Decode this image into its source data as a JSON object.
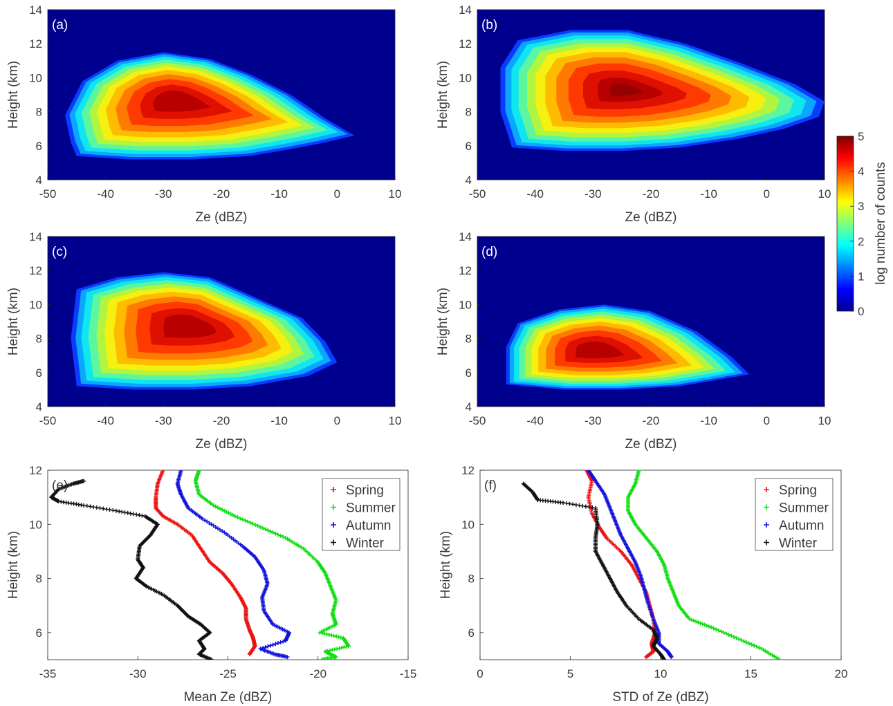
{
  "colorbar": {
    "label": "log number of counts",
    "ticks": [
      0,
      1,
      2,
      3,
      4,
      5
    ],
    "range": [
      0,
      5
    ]
  },
  "colormap": [
    "#00008f",
    "#0000ff",
    "#00ffff",
    "#ffff00",
    "#ff0000",
    "#800000"
  ],
  "chart_data": [
    {
      "type": "heatmap",
      "panel_label": "(a)",
      "xlabel": "Ze  (dBZ)",
      "ylabel": "Height (km)",
      "xlim": [
        -50,
        10
      ],
      "ylim": [
        4,
        14
      ],
      "xticks": [
        -50,
        -40,
        -30,
        -20,
        -10,
        0,
        10
      ],
      "yticks": [
        4,
        6,
        8,
        10,
        12,
        14
      ],
      "outline": [
        [
          -45,
          5.4
        ],
        [
          -36,
          5.2
        ],
        [
          -25,
          5.2
        ],
        [
          -15,
          5.4
        ],
        [
          -8,
          5.8
        ],
        [
          -2,
          6.2
        ],
        [
          3,
          6.6
        ],
        [
          -2,
          7.6
        ],
        [
          -8,
          9.0
        ],
        [
          -15,
          10.2
        ],
        [
          -22,
          11.1
        ],
        [
          -30,
          11.5
        ],
        [
          -38,
          11.0
        ],
        [
          -44,
          9.8
        ],
        [
          -47,
          7.8
        ],
        [
          -46,
          6.2
        ]
      ],
      "peak": {
        "x": -28,
        "y": 8.7,
        "value": 4.6
      }
    },
    {
      "type": "heatmap",
      "panel_label": "(b)",
      "xlabel": "Ze  (dBZ)",
      "ylabel": "Height (km)",
      "xlim": [
        -50,
        10
      ],
      "ylim": [
        4,
        14
      ],
      "xticks": [
        -50,
        -40,
        -30,
        -20,
        -10,
        0,
        10
      ],
      "yticks": [
        4,
        6,
        8,
        10,
        12,
        14
      ],
      "outline": [
        [
          -44,
          5.9
        ],
        [
          -35,
          5.7
        ],
        [
          -25,
          5.7
        ],
        [
          -15,
          5.9
        ],
        [
          -5,
          6.4
        ],
        [
          3,
          7.0
        ],
        [
          9,
          7.7
        ],
        [
          10,
          8.6
        ],
        [
          5,
          9.6
        ],
        [
          -4,
          10.8
        ],
        [
          -14,
          12.0
        ],
        [
          -24,
          12.8
        ],
        [
          -34,
          12.8
        ],
        [
          -43,
          12.2
        ],
        [
          -46,
          10.6
        ],
        [
          -46,
          8.0
        ]
      ],
      "peak": {
        "x": -25,
        "y": 9.3,
        "value": 4.9
      }
    },
    {
      "type": "heatmap",
      "panel_label": "(c)",
      "xlabel": "Ze  (dBZ)",
      "ylabel": "Height (km)",
      "xlim": [
        -50,
        10
      ],
      "ylim": [
        4,
        14
      ],
      "xticks": [
        -50,
        -40,
        -30,
        -20,
        -10,
        0,
        10
      ],
      "yticks": [
        4,
        6,
        8,
        10,
        12,
        14
      ],
      "outline": [
        [
          -45,
          5.2
        ],
        [
          -35,
          5.0
        ],
        [
          -25,
          5.0
        ],
        [
          -15,
          5.2
        ],
        [
          -5,
          5.8
        ],
        [
          0,
          6.6
        ],
        [
          -2,
          7.8
        ],
        [
          -6,
          9.2
        ],
        [
          -14,
          10.4
        ],
        [
          -22,
          11.6
        ],
        [
          -30,
          11.9
        ],
        [
          -38,
          11.6
        ],
        [
          -45,
          10.9
        ],
        [
          -46,
          8.0
        ]
      ],
      "peak": {
        "x": -26,
        "y": 8.8,
        "value": 4.6
      }
    },
    {
      "type": "heatmap",
      "panel_label": "(d)",
      "xlabel": "Ze  (dBZ)",
      "ylabel": "Height (km)",
      "xlim": [
        -50,
        10
      ],
      "ylim": [
        4,
        14
      ],
      "xticks": [
        -50,
        -40,
        -30,
        -20,
        -10,
        0,
        10
      ],
      "yticks": [
        4,
        6,
        8,
        10,
        12,
        14
      ],
      "outline": [
        [
          -45,
          5.3
        ],
        [
          -35,
          5.0
        ],
        [
          -25,
          5.0
        ],
        [
          -15,
          5.2
        ],
        [
          -8,
          5.6
        ],
        [
          -3,
          5.9
        ],
        [
          -6,
          6.9
        ],
        [
          -12,
          8.4
        ],
        [
          -20,
          9.6
        ],
        [
          -28,
          10.0
        ],
        [
          -36,
          9.7
        ],
        [
          -43,
          8.9
        ],
        [
          -45,
          7.5
        ]
      ],
      "peak": {
        "x": -30,
        "y": 7.3,
        "value": 4.3
      }
    },
    {
      "type": "scatter",
      "panel_label": "(e)",
      "xlabel": "Mean Ze  (dBZ)",
      "ylabel": "Height (km)",
      "xlim": [
        -35,
        -15
      ],
      "ylim": [
        5,
        12
      ],
      "xticks": [
        -35,
        -30,
        -25,
        -20,
        -15
      ],
      "yticks": [
        6,
        8,
        10,
        12
      ],
      "series": [
        {
          "name": "Spring",
          "color": "#ee1111",
          "points": [
            [
              -28.6,
              12
            ],
            [
              -28.9,
              11.5
            ],
            [
              -29.0,
              11.0
            ],
            [
              -29.0,
              10.6
            ],
            [
              -28.6,
              10.3
            ],
            [
              -27.8,
              10.0
            ],
            [
              -27.0,
              9.6
            ],
            [
              -26.5,
              9.1
            ],
            [
              -26.0,
              8.6
            ],
            [
              -25.3,
              8.2
            ],
            [
              -24.8,
              7.8
            ],
            [
              -24.3,
              7.3
            ],
            [
              -24.0,
              6.9
            ],
            [
              -24.0,
              6.5
            ],
            [
              -23.8,
              6.1
            ],
            [
              -23.6,
              5.8
            ],
            [
              -23.5,
              5.5
            ],
            [
              -23.8,
              5.2
            ]
          ]
        },
        {
          "name": "Summer",
          "color": "#11dd11",
          "points": [
            [
              -26.6,
              12
            ],
            [
              -26.8,
              11.6
            ],
            [
              -26.6,
              11.1
            ],
            [
              -25.8,
              10.7
            ],
            [
              -24.6,
              10.3
            ],
            [
              -23.2,
              9.9
            ],
            [
              -21.8,
              9.5
            ],
            [
              -20.8,
              9.1
            ],
            [
              -20.0,
              8.6
            ],
            [
              -19.6,
              8.2
            ],
            [
              -19.3,
              7.7
            ],
            [
              -19.0,
              7.2
            ],
            [
              -19.2,
              6.7
            ],
            [
              -19.0,
              6.3
            ],
            [
              -19.9,
              6.0
            ],
            [
              -18.6,
              5.8
            ],
            [
              -18.3,
              5.5
            ],
            [
              -19.6,
              5.3
            ],
            [
              -19.0,
              5.1
            ],
            [
              -19.8,
              5.0
            ]
          ]
        },
        {
          "name": "Autumn",
          "color": "#1111dd",
          "points": [
            [
              -27.6,
              12
            ],
            [
              -27.8,
              11.5
            ],
            [
              -27.6,
              11.1
            ],
            [
              -27.2,
              10.6
            ],
            [
              -26.4,
              10.2
            ],
            [
              -25.2,
              9.7
            ],
            [
              -24.2,
              9.2
            ],
            [
              -23.5,
              8.8
            ],
            [
              -23.0,
              8.3
            ],
            [
              -22.8,
              7.8
            ],
            [
              -23.1,
              7.3
            ],
            [
              -23.0,
              6.8
            ],
            [
              -22.5,
              6.3
            ],
            [
              -21.6,
              6.0
            ],
            [
              -21.8,
              5.7
            ],
            [
              -23.2,
              5.4
            ],
            [
              -22.4,
              5.2
            ],
            [
              -21.7,
              5.1
            ]
          ]
        },
        {
          "name": "Winter",
          "color": "#111111",
          "points": [
            [
              -33.0,
              11.6
            ],
            [
              -33.6,
              11.5
            ],
            [
              -34.4,
              11.3
            ],
            [
              -34.8,
              11.0
            ],
            [
              -34.4,
              10.85
            ],
            [
              -33.0,
              10.7
            ],
            [
              -31.2,
              10.5
            ],
            [
              -29.6,
              10.3
            ],
            [
              -28.9,
              10.0
            ],
            [
              -29.3,
              9.6
            ],
            [
              -29.9,
              9.2
            ],
            [
              -30.0,
              8.7
            ],
            [
              -29.7,
              8.4
            ],
            [
              -30.1,
              8.0
            ],
            [
              -29.5,
              7.7
            ],
            [
              -28.6,
              7.4
            ],
            [
              -27.8,
              7.0
            ],
            [
              -27.2,
              6.6
            ],
            [
              -26.5,
              6.3
            ],
            [
              -26.0,
              6.0
            ],
            [
              -26.6,
              5.7
            ],
            [
              -26.3,
              5.4
            ],
            [
              -26.6,
              5.2
            ],
            [
              -25.9,
              5.0
            ]
          ]
        }
      ],
      "legend": "top-right"
    },
    {
      "type": "scatter",
      "panel_label": "(f)",
      "xlabel": "STD of Ze  (dBZ)",
      "ylabel": "Height (km)",
      "xlim": [
        0,
        20
      ],
      "ylim": [
        5,
        12
      ],
      "xticks": [
        0,
        5,
        10,
        15,
        20
      ],
      "yticks": [
        6,
        8,
        10,
        12
      ],
      "series": [
        {
          "name": "Spring",
          "color": "#ee1111",
          "points": [
            [
              5.9,
              12
            ],
            [
              6.2,
              11.6
            ],
            [
              6.0,
              11.0
            ],
            [
              6.2,
              10.4
            ],
            [
              6.6,
              9.9
            ],
            [
              7.0,
              9.5
            ],
            [
              7.8,
              9.0
            ],
            [
              8.4,
              8.5
            ],
            [
              8.8,
              8.0
            ],
            [
              9.2,
              7.5
            ],
            [
              9.4,
              7.0
            ],
            [
              9.6,
              6.5
            ],
            [
              9.7,
              6.0
            ],
            [
              9.5,
              5.6
            ],
            [
              9.6,
              5.3
            ],
            [
              9.2,
              5.1
            ]
          ]
        },
        {
          "name": "Summer",
          "color": "#11dd11",
          "points": [
            [
              8.8,
              12
            ],
            [
              8.6,
              11.5
            ],
            [
              8.2,
              11.0
            ],
            [
              8.2,
              10.5
            ],
            [
              8.6,
              10.0
            ],
            [
              9.2,
              9.5
            ],
            [
              9.8,
              9.0
            ],
            [
              10.2,
              8.5
            ],
            [
              10.4,
              8.0
            ],
            [
              10.7,
              7.5
            ],
            [
              11.0,
              7.0
            ],
            [
              11.6,
              6.5
            ],
            [
              12.8,
              6.2
            ],
            [
              14.2,
              5.8
            ],
            [
              15.6,
              5.4
            ],
            [
              16.6,
              5.0
            ]
          ]
        },
        {
          "name": "Autumn",
          "color": "#1111dd",
          "points": [
            [
              6.0,
              12
            ],
            [
              6.4,
              11.6
            ],
            [
              6.9,
              11.1
            ],
            [
              7.2,
              10.6
            ],
            [
              7.5,
              10.1
            ],
            [
              7.8,
              9.6
            ],
            [
              8.2,
              9.1
            ],
            [
              8.6,
              8.6
            ],
            [
              8.9,
              8.1
            ],
            [
              9.1,
              7.6
            ],
            [
              9.3,
              7.1
            ],
            [
              9.6,
              6.5
            ],
            [
              9.9,
              6.0
            ],
            [
              9.9,
              5.6
            ],
            [
              10.4,
              5.3
            ],
            [
              10.6,
              5.1
            ]
          ]
        },
        {
          "name": "Winter",
          "color": "#111111",
          "points": [
            [
              2.4,
              11.5
            ],
            [
              2.9,
              11.2
            ],
            [
              3.2,
              10.9
            ],
            [
              4.6,
              10.8
            ],
            [
              6.4,
              10.6
            ],
            [
              6.5,
              10.0
            ],
            [
              6.4,
              9.5
            ],
            [
              6.4,
              9.0
            ],
            [
              6.8,
              8.5
            ],
            [
              7.2,
              8.0
            ],
            [
              7.6,
              7.5
            ],
            [
              8.1,
              7.0
            ],
            [
              8.8,
              6.5
            ],
            [
              9.6,
              6.1
            ],
            [
              9.8,
              5.8
            ],
            [
              9.6,
              5.5
            ],
            [
              10.0,
              5.2
            ],
            [
              10.2,
              5.0
            ]
          ]
        }
      ],
      "legend": "top-right"
    }
  ]
}
